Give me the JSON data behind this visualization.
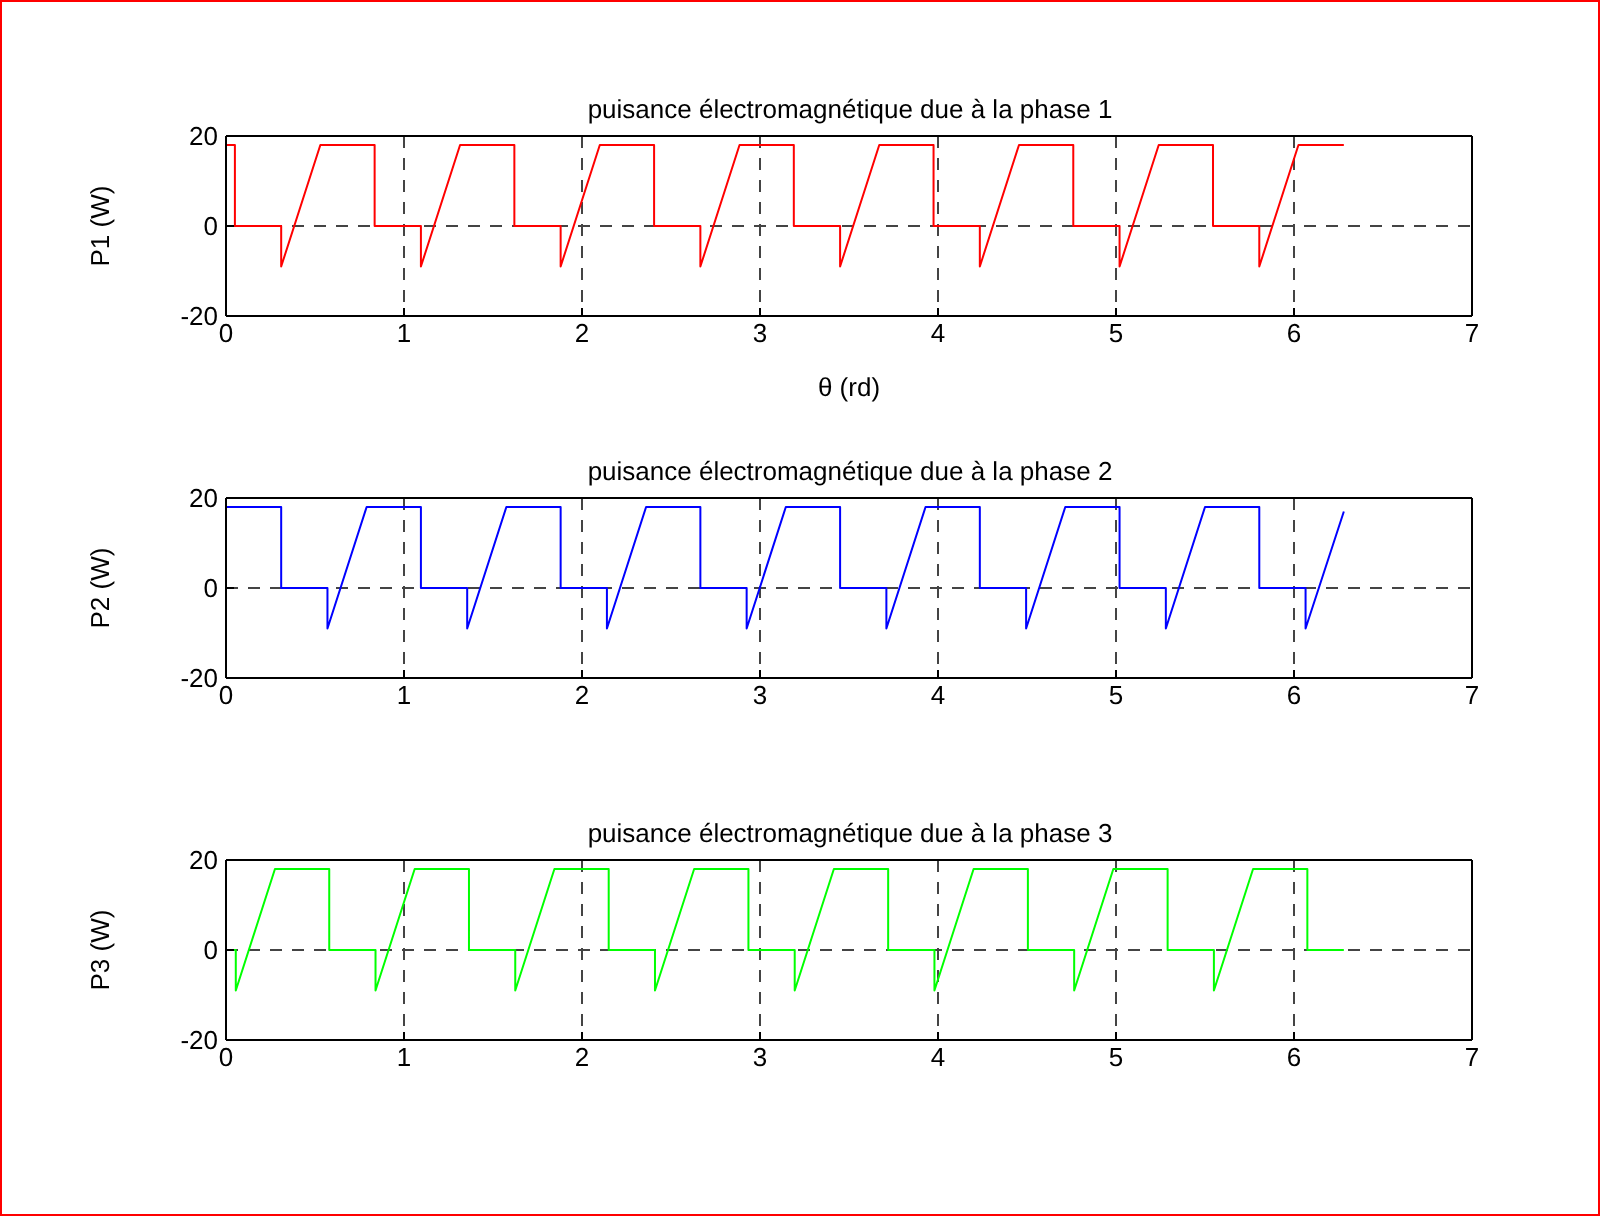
{
  "chart_data": [
    {
      "type": "line",
      "title": "puisance électromagnétique due à la phase 1",
      "xlabel": "θ (rd)",
      "ylabel": "P1 (W)",
      "x": [
        0,
        0.05,
        0.05,
        0.31,
        0.31,
        0.53,
        0.835,
        0.835,
        1.095,
        1.095,
        1.315,
        1.62,
        1.62,
        1.88,
        1.88,
        2.1,
        2.405,
        2.405,
        2.665,
        2.665,
        2.885,
        3.19,
        3.19,
        3.45,
        3.45,
        3.67,
        3.975,
        3.975,
        4.235,
        4.235,
        4.455,
        4.76,
        4.76,
        5.02,
        5.02,
        5.24,
        5.545,
        5.545,
        5.805,
        5.805,
        6.025,
        6.28
      ],
      "series": [
        {
          "color": "#ff0000",
          "values": [
            18,
            18,
            0,
            0,
            -9,
            18,
            18,
            0,
            0,
            -9,
            18,
            18,
            0,
            0,
            -9,
            18,
            18,
            0,
            0,
            -9,
            18,
            18,
            0,
            0,
            -9,
            18,
            18,
            0,
            0,
            -9,
            18,
            18,
            0,
            0,
            -9,
            18,
            18,
            0,
            0,
            -9,
            18,
            18
          ]
        }
      ],
      "xlim": [
        0,
        7
      ],
      "xticks": [
        0,
        1,
        2,
        3,
        4,
        5,
        6,
        7
      ],
      "ylim": [
        -20,
        20
      ],
      "yticks": [
        -20,
        0,
        20
      ],
      "grid": true
    },
    {
      "type": "line",
      "title": "puisance électromagnétique due à la phase 2",
      "ylabel": "P2 (W)",
      "x": [
        0,
        0.31,
        0.31,
        0.57,
        0.57,
        0.79,
        1.095,
        1.095,
        1.355,
        1.355,
        1.575,
        1.88,
        1.88,
        2.14,
        2.14,
        2.36,
        2.665,
        2.665,
        2.925,
        2.925,
        3.145,
        3.45,
        3.45,
        3.71,
        3.71,
        3.93,
        4.235,
        4.235,
        4.495,
        4.495,
        4.715,
        5.02,
        5.02,
        5.28,
        5.28,
        5.5,
        5.805,
        5.805,
        6.065,
        6.065,
        6.28
      ],
      "series": [
        {
          "color": "#0000ff",
          "values": [
            18,
            18,
            0,
            0,
            -9,
            18,
            18,
            0,
            0,
            -9,
            18,
            18,
            0,
            0,
            -9,
            18,
            18,
            0,
            0,
            -9,
            18,
            18,
            0,
            0,
            -9,
            18,
            18,
            0,
            0,
            -9,
            18,
            18,
            0,
            0,
            -9,
            18,
            18,
            0,
            0,
            -9,
            17
          ]
        }
      ],
      "xlim": [
        0,
        7
      ],
      "xticks": [
        0,
        1,
        2,
        3,
        4,
        5,
        6,
        7
      ],
      "ylim": [
        -20,
        20
      ],
      "yticks": [
        -20,
        0,
        20
      ],
      "grid": true
    },
    {
      "type": "line",
      "title": "puisance électromagnétique due à la phase 3",
      "ylabel": "P3 (W)",
      "x": [
        0,
        0.055,
        0.055,
        0.275,
        0.58,
        0.58,
        0.84,
        0.84,
        1.06,
        1.365,
        1.365,
        1.625,
        1.625,
        1.845,
        2.15,
        2.15,
        2.41,
        2.41,
        2.63,
        2.935,
        2.935,
        3.195,
        3.195,
        3.415,
        3.72,
        3.72,
        3.98,
        3.98,
        4.2,
        4.505,
        4.505,
        4.765,
        4.765,
        4.985,
        5.29,
        5.29,
        5.55,
        5.55,
        5.77,
        6.075,
        6.075,
        6.28
      ],
      "series": [
        {
          "color": "#00ff00",
          "values": [
            0,
            0,
            -9,
            18,
            18,
            0,
            0,
            -9,
            18,
            18,
            0,
            0,
            -9,
            18,
            18,
            0,
            0,
            -9,
            18,
            18,
            0,
            0,
            -9,
            18,
            18,
            0,
            0,
            -9,
            18,
            18,
            0,
            0,
            -9,
            18,
            18,
            0,
            0,
            -9,
            18,
            18,
            0,
            0
          ]
        }
      ],
      "xlim": [
        0,
        7
      ],
      "xticks": [
        0,
        1,
        2,
        3,
        4,
        5,
        6,
        7
      ],
      "ylim": [
        -20,
        20
      ],
      "yticks": [
        -20,
        0,
        20
      ],
      "grid": true
    }
  ]
}
